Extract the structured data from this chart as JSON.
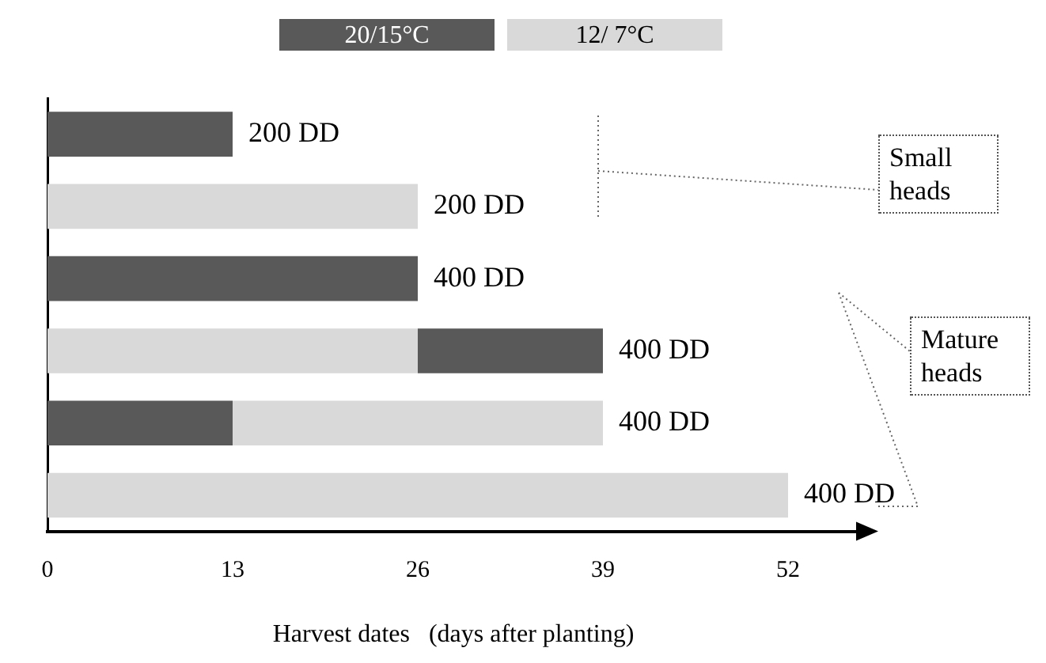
{
  "chart_data": {
    "type": "bar",
    "orientation": "horizontal",
    "categories": [
      null,
      null,
      null,
      null,
      null,
      null
    ],
    "series": [
      {
        "name": "20/15°C",
        "color": "#595959",
        "values": [
          13,
          null,
          26,
          13,
          13,
          null
        ],
        "base": [
          0,
          null,
          0,
          26,
          0,
          null
        ]
      },
      {
        "name": "12/ 7°C",
        "color": "#d9d9d9",
        "values": [
          null,
          26,
          null,
          26,
          26,
          52
        ],
        "base": [
          null,
          0,
          null,
          0,
          13,
          0
        ]
      }
    ],
    "xlim": [
      0,
      57
    ],
    "xticks": [
      0,
      13,
      26,
      39,
      52
    ],
    "xlabel": "Harvest dates   (days after planting)",
    "grid": false,
    "legend": "top",
    "tick_labels": "x",
    "annotations": [
      {
        "text": "200 DD",
        "x": 13
      },
      {
        "text": "200 DD",
        "x": 26
      },
      {
        "text": "400 DD",
        "x": 26
      },
      {
        "text": "400 DD",
        "x": 39
      },
      {
        "text": "400 DD",
        "x": 39
      },
      {
        "text": "400 DD",
        "x": 52
      },
      "Small heads",
      "Mature heads"
    ]
  }
}
